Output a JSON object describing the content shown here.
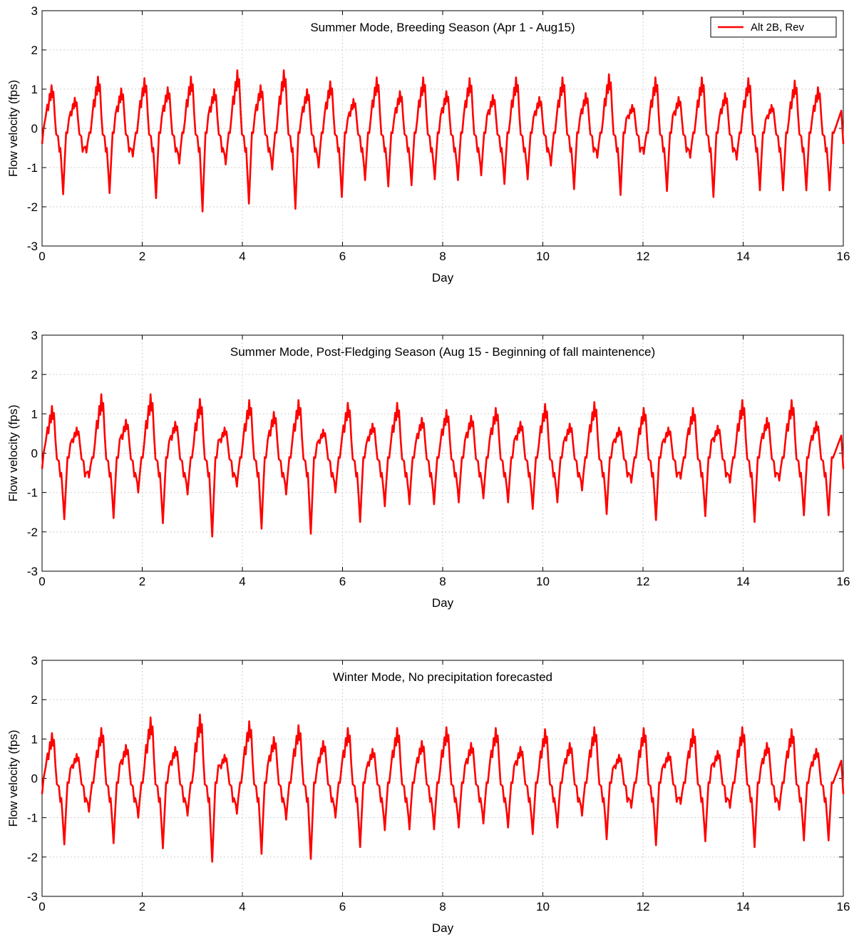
{
  "colors": {
    "series": "#ff0000",
    "grid": "#cfcfcf",
    "axis": "#000000",
    "background": "#ffffff"
  },
  "chart_data": [
    {
      "type": "line",
      "title": "Summer Mode, Breeding Season (Apr 1 - Aug15)",
      "xlabel": "Day",
      "ylabel": "Flow velocity (fps)",
      "xlim": [
        0,
        16
      ],
      "ylim": [
        -3,
        3
      ],
      "xticks": [
        "0",
        "2",
        "4",
        "6",
        "8",
        "10",
        "12",
        "14",
        "16"
      ],
      "yticks": [
        "-3",
        "-2",
        "-1",
        "0",
        "1",
        "2",
        "3"
      ],
      "grid": true,
      "legend": {
        "placement": "top-right",
        "entries": [
          "Alt 2B, Rev"
        ]
      },
      "series": [
        {
          "name": "Alt 2B, Rev",
          "color": "#ff0000",
          "peaks": [
            1.1,
            0.78,
            1.32,
            1.02,
            1.28,
            1.05,
            1.32,
            1.0,
            1.48,
            1.1,
            1.48,
            1.0,
            1.2,
            0.75,
            1.3,
            0.95,
            1.3,
            0.95,
            1.28,
            0.85,
            1.3,
            0.8,
            1.3,
            0.9,
            1.38,
            0.6,
            1.3,
            0.8,
            1.3,
            0.9,
            1.28,
            0.6,
            1.22,
            1.05
          ],
          "troughs": [
            -1.68,
            -0.62,
            -1.65,
            -0.72,
            -1.78,
            -0.9,
            -2.12,
            -0.92,
            -1.92,
            -1.05,
            -2.05,
            -1.0,
            -1.75,
            -1.32,
            -1.48,
            -1.45,
            -1.3,
            -1.32,
            -1.2,
            -1.42,
            -1.3,
            -0.95,
            -1.55,
            -0.75,
            -1.7,
            -0.65,
            -1.6,
            -0.75,
            -1.75,
            -0.8,
            -1.58
          ]
        }
      ]
    },
    {
      "type": "line",
      "title": "Summer Mode, Post-Fledging Season (Aug 15 - Beginning of fall maintenence)",
      "xlabel": "Day",
      "ylabel": "Flow velocity (fps)",
      "xlim": [
        0,
        16
      ],
      "ylim": [
        -3,
        3
      ],
      "xticks": [
        "0",
        "2",
        "4",
        "6",
        "8",
        "10",
        "12",
        "14",
        "16"
      ],
      "yticks": [
        "-3",
        "-2",
        "-1",
        "0",
        "1",
        "2",
        "3"
      ],
      "grid": true,
      "series": [
        {
          "name": "Alt 2B, Rev",
          "color": "#ff0000",
          "peaks": [
            1.2,
            0.65,
            1.5,
            0.85,
            1.5,
            0.8,
            1.38,
            0.65,
            1.35,
            1.05,
            1.35,
            0.6,
            1.28,
            0.75,
            1.28,
            0.9,
            1.1,
            0.95,
            1.15,
            0.8,
            1.25,
            0.75,
            1.3,
            0.65,
            1.15,
            0.65,
            1.15,
            0.7,
            1.35,
            0.9,
            1.35,
            0.8
          ],
          "troughs": [
            -1.68,
            -0.62,
            -1.65,
            -1.0,
            -1.78,
            -1.05,
            -2.12,
            -0.85,
            -1.92,
            -1.05,
            -2.05,
            -1.0,
            -1.75,
            -1.35,
            -1.3,
            -1.3,
            -1.25,
            -1.15,
            -1.25,
            -1.42,
            -1.25,
            -0.95,
            -1.55,
            -0.75,
            -1.7,
            -0.65,
            -1.6,
            -0.75,
            -1.75,
            -0.7,
            -1.58
          ]
        }
      ]
    },
    {
      "type": "line",
      "title": "Winter Mode, No precipitation forecasted",
      "xlabel": "Day",
      "ylabel": "Flow velocity (fps)",
      "xlim": [
        0,
        16
      ],
      "ylim": [
        -3,
        3
      ],
      "xticks": [
        "0",
        "2",
        "4",
        "6",
        "8",
        "10",
        "12",
        "14",
        "16"
      ],
      "yticks": [
        "-3",
        "-2",
        "-1",
        "0",
        "1",
        "2",
        "3"
      ],
      "grid": true,
      "series": [
        {
          "name": "Alt 2B, Rev",
          "color": "#ff0000",
          "peaks": [
            1.15,
            0.62,
            1.28,
            0.85,
            1.55,
            0.8,
            1.62,
            0.6,
            1.45,
            1.05,
            1.35,
            0.95,
            1.28,
            0.75,
            1.28,
            0.95,
            1.3,
            0.9,
            1.28,
            0.8,
            1.25,
            0.9,
            1.3,
            0.6,
            1.28,
            0.65,
            1.25,
            0.7,
            1.3,
            0.9,
            1.25,
            0.75
          ],
          "troughs": [
            -1.68,
            -0.85,
            -1.65,
            -1.0,
            -1.78,
            -0.95,
            -2.12,
            -0.9,
            -1.92,
            -1.05,
            -2.05,
            -1.0,
            -1.75,
            -1.32,
            -1.3,
            -1.3,
            -1.25,
            -1.15,
            -1.25,
            -1.42,
            -1.25,
            -0.95,
            -1.55,
            -0.75,
            -1.7,
            -0.65,
            -1.6,
            -0.75,
            -1.75,
            -0.8,
            -1.58
          ]
        }
      ]
    }
  ]
}
